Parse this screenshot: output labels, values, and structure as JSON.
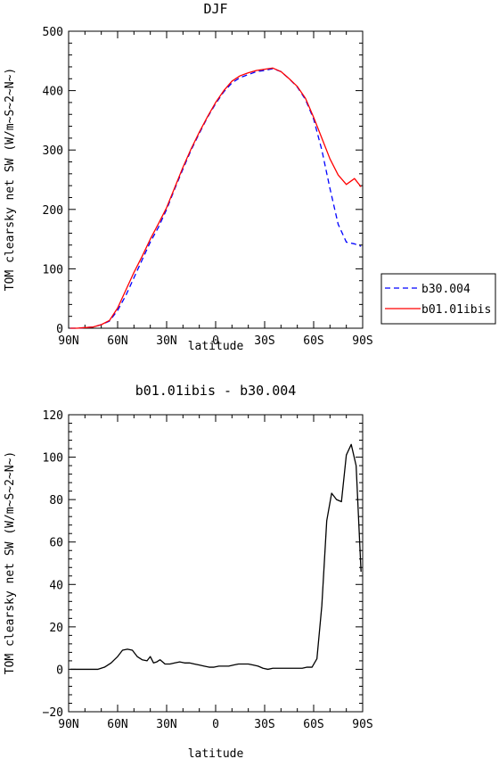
{
  "chart_data": [
    {
      "type": "line",
      "title": "DJF",
      "xlabel": "latitude",
      "ylabel": "TOM clearsky net SW (W/m~S~2~N~)",
      "xlim": [
        -90,
        90
      ],
      "ylim": [
        0,
        500
      ],
      "x_ticks": [
        "90N",
        "60N",
        "30N",
        "0",
        "30S",
        "60S",
        "90S"
      ],
      "y_ticks": [
        "0",
        "100",
        "200",
        "300",
        "400",
        "500"
      ],
      "series": [
        {
          "name": "b30.004",
          "color": "#0000ff",
          "dash": "dashed",
          "x": [
            -89,
            -85,
            -80,
            -75,
            -70,
            -65,
            -60,
            -55,
            -50,
            -45,
            -40,
            -35,
            -30,
            -25,
            -20,
            -15,
            -10,
            -5,
            0,
            5,
            10,
            15,
            20,
            25,
            30,
            35,
            40,
            45,
            50,
            55,
            60,
            65,
            70,
            75,
            80,
            85,
            89
          ],
          "y": [
            0,
            0,
            1,
            2,
            6,
            12,
            30,
            55,
            85,
            115,
            145,
            170,
            200,
            235,
            268,
            300,
            328,
            355,
            378,
            398,
            413,
            422,
            427,
            432,
            434,
            437,
            432,
            420,
            406,
            385,
            352,
            300,
            235,
            175,
            145,
            142,
            138
          ]
        },
        {
          "name": "b01.01ibis",
          "color": "#ff0000",
          "dash": "solid",
          "x": [
            -89,
            -85,
            -80,
            -75,
            -70,
            -65,
            -60,
            -55,
            -50,
            -45,
            -40,
            -35,
            -30,
            -25,
            -20,
            -15,
            -10,
            -5,
            0,
            5,
            10,
            15,
            20,
            25,
            30,
            35,
            40,
            45,
            50,
            55,
            60,
            65,
            70,
            75,
            80,
            85,
            89
          ],
          "y": [
            0,
            0,
            1,
            2,
            6,
            13,
            34,
            64,
            94,
            121,
            150,
            176,
            203,
            237,
            271,
            302,
            330,
            356,
            380,
            400,
            416,
            425,
            430,
            434,
            436,
            438,
            432,
            420,
            407,
            387,
            355,
            320,
            285,
            258,
            242,
            252,
            238
          ]
        }
      ],
      "legend": "right"
    },
    {
      "type": "line",
      "title": "b01.01ibis - b30.004",
      "xlabel": "latitude",
      "ylabel": "TOM clearsky net SW (W/m~S~2~N~)",
      "xlim": [
        -90,
        90
      ],
      "ylim": [
        -20,
        120
      ],
      "x_ticks": [
        "90N",
        "60N",
        "30N",
        "0",
        "30S",
        "60S",
        "90S"
      ],
      "y_ticks": [
        "−20",
        "0",
        "20",
        "40",
        "60",
        "80",
        "100",
        "120"
      ],
      "series": [
        {
          "color": "#000000",
          "x": [
            -89,
            -85,
            -80,
            -75,
            -72,
            -68,
            -64,
            -60,
            -57,
            -54,
            -51,
            -48,
            -45,
            -42,
            -40,
            -38,
            -36,
            -34,
            -31,
            -28,
            -25,
            -22,
            -19,
            -16,
            -13,
            -10,
            -7,
            -4,
            -1,
            2,
            5,
            8,
            11,
            14,
            17,
            20,
            23,
            26,
            29,
            32,
            35,
            38,
            41,
            44,
            47,
            50,
            53,
            56,
            59,
            62,
            65,
            68,
            71,
            74,
            77,
            80,
            83,
            86,
            89
          ],
          "y": [
            0,
            0,
            0,
            0,
            0,
            1,
            3,
            6,
            9,
            9.5,
            9,
            6,
            4.5,
            4,
            6,
            3,
            3.5,
            4.5,
            2.5,
            2.5,
            3,
            3.5,
            3,
            3,
            2.5,
            2,
            1.5,
            1,
            1,
            1.5,
            1.5,
            1.5,
            2,
            2.5,
            2.5,
            2.5,
            2,
            1.5,
            0.5,
            0,
            0.5,
            0.5,
            0.5,
            0.5,
            0.5,
            0.5,
            0.5,
            1,
            1,
            5,
            30,
            70,
            83,
            80,
            79,
            101,
            106,
            96,
            46
          ]
        }
      ]
    }
  ]
}
